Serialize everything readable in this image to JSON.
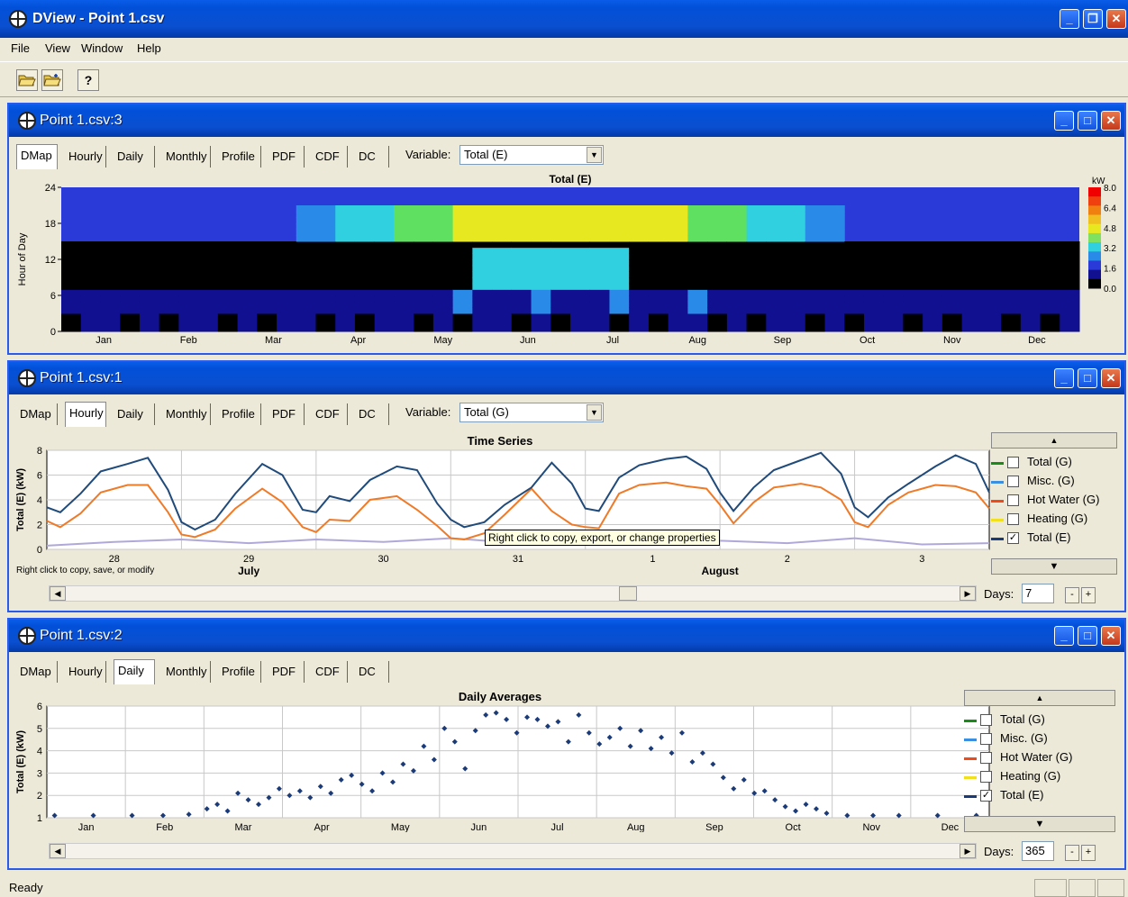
{
  "app": {
    "title": "DView - Point 1.csv"
  },
  "menu": [
    "File",
    "View",
    "Window",
    "Help"
  ],
  "toolbar": {
    "icons": [
      "open-folder-icon",
      "open-folder-add-icon",
      "help-icon"
    ],
    "help_glyph": "?"
  },
  "tabs": [
    "DMap",
    "Hourly",
    "Daily",
    "Monthly",
    "Profile",
    "PDF",
    "CDF",
    "DC"
  ],
  "windows": {
    "w3": {
      "title": "Point 1.csv:3",
      "active_tab": "DMap",
      "variable_label": "Variable:",
      "variable_value": "Total (E)"
    },
    "w1": {
      "title": "Point 1.csv:1",
      "active_tab": "Hourly",
      "variable_label": "Variable:",
      "variable_value": "Total (G)",
      "footnote": "Right click to copy, save, or modify",
      "tooltip": "Right click to copy, export, or change properties",
      "days_label": "Days:",
      "days_value": "7"
    },
    "w2": {
      "title": "Point 1.csv:2",
      "active_tab": "Daily",
      "days_label": "Days:",
      "days_value": "365"
    }
  },
  "legend": [
    {
      "label": "Total (G)",
      "color": "#1a8a1a",
      "checked": false
    },
    {
      "label": "Misc. (G)",
      "color": "#3a8fe0",
      "checked": false
    },
    {
      "label": "Hot Water (G)",
      "color": "#f04a1a",
      "checked": false
    },
    {
      "label": "Heating (G)",
      "color": "#f0e020",
      "checked": false
    },
    {
      "label": "Total (E)",
      "color": "#1a3a78",
      "checked": true
    }
  ],
  "check_glyph": "✓",
  "status": {
    "text": "Ready"
  },
  "chart_data": [
    {
      "type": "heatmap",
      "title": "Total (E)",
      "ylabel": "Hour of Day",
      "yticks": [
        "0",
        "6",
        "12",
        "18",
        "24"
      ],
      "xticks": [
        "Jan",
        "Feb",
        "Mar",
        "Apr",
        "May",
        "Jun",
        "Jul",
        "Aug",
        "Sep",
        "Oct",
        "Nov",
        "Dec"
      ],
      "colorbar": {
        "unit": "kW",
        "ticks": [
          "8.0",
          "6.4",
          "4.8",
          "3.2",
          "1.6",
          "0.0"
        ],
        "range": [
          0,
          8
        ]
      }
    },
    {
      "type": "line",
      "title": "Time Series",
      "ylabel": "Total (E) (kW)",
      "ylim": [
        0,
        8
      ],
      "yticks": [
        "0",
        "2",
        "4",
        "6",
        "8"
      ],
      "day_ticks": [
        "28",
        "29",
        "30",
        "31",
        "1",
        "2",
        "3"
      ],
      "month_labels": [
        "July",
        "August"
      ],
      "series": [
        {
          "name": "Total (E)",
          "color": "#1f4a7a",
          "x": [
            0,
            0.1,
            0.25,
            0.4,
            0.6,
            0.75,
            0.9,
            1.0,
            1.1,
            1.25,
            1.4,
            1.6,
            1.75,
            1.9,
            2.0,
            2.1,
            2.25,
            2.4,
            2.6,
            2.75,
            2.9,
            3.0,
            3.1,
            3.25,
            3.4,
            3.6,
            3.75,
            3.9,
            4.0,
            4.1,
            4.25,
            4.4,
            4.6,
            4.75,
            4.9,
            5.0,
            5.1,
            5.25,
            5.4,
            5.6,
            5.75,
            5.9,
            6.0,
            6.1,
            6.25,
            6.4,
            6.6,
            6.75,
            6.9,
            7.0
          ],
          "values": [
            3.4,
            3.0,
            4.5,
            6.3,
            6.9,
            7.4,
            4.8,
            2.2,
            1.6,
            2.4,
            4.5,
            6.9,
            6.0,
            3.2,
            3.0,
            4.3,
            3.9,
            5.6,
            6.7,
            6.4,
            3.7,
            2.4,
            1.8,
            2.2,
            3.6,
            5.0,
            7.0,
            5.3,
            3.3,
            3.1,
            5.8,
            6.8,
            7.3,
            7.5,
            6.5,
            4.6,
            3.1,
            5.0,
            6.4,
            7.2,
            7.8,
            6.1,
            3.4,
            2.6,
            4.2,
            5.3,
            6.7,
            7.6,
            6.9,
            4.6
          ]
        },
        {
          "name": "Hot Water (G)",
          "color": "#ef7a28",
          "x": [
            0,
            0.1,
            0.25,
            0.4,
            0.6,
            0.75,
            0.9,
            1.0,
            1.1,
            1.25,
            1.4,
            1.6,
            1.75,
            1.9,
            2.0,
            2.1,
            2.25,
            2.4,
            2.6,
            2.75,
            2.9,
            3.0,
            3.1,
            3.25,
            3.4,
            3.6,
            3.75,
            3.9,
            4.0,
            4.1,
            4.25,
            4.4,
            4.6,
            4.75,
            4.9,
            5.0,
            5.1,
            5.25,
            5.4,
            5.6,
            5.75,
            5.9,
            6.0,
            6.1,
            6.25,
            6.4,
            6.6,
            6.75,
            6.9,
            7.0
          ],
          "values": [
            2.3,
            1.8,
            2.9,
            4.6,
            5.2,
            5.2,
            3.0,
            1.2,
            1.0,
            1.6,
            3.3,
            4.9,
            3.8,
            1.8,
            1.4,
            2.4,
            2.3,
            4.0,
            4.3,
            3.2,
            1.9,
            0.9,
            0.8,
            1.3,
            2.8,
            4.9,
            3.1,
            2.0,
            1.8,
            1.7,
            4.5,
            5.2,
            5.4,
            5.1,
            4.9,
            3.6,
            2.1,
            3.8,
            5.0,
            5.3,
            5.0,
            4.0,
            2.2,
            1.8,
            3.6,
            4.6,
            5.2,
            5.1,
            4.6,
            3.3
          ]
        },
        {
          "name": "Misc. (G)",
          "color": "#b0a8d8",
          "x": [
            0,
            0.5,
            1.0,
            1.5,
            2.0,
            2.5,
            3.0,
            3.5,
            4.0,
            4.5,
            5.0,
            5.5,
            6.0,
            6.5,
            7.0
          ],
          "values": [
            0.3,
            0.6,
            0.8,
            0.5,
            0.8,
            0.6,
            0.9,
            0.5,
            0.8,
            0.5,
            0.7,
            0.5,
            0.9,
            0.4,
            0.5
          ]
        }
      ]
    },
    {
      "type": "scatter",
      "title": "Daily Averages",
      "ylabel": "Total (E) (kW)",
      "ylim": [
        1,
        6
      ],
      "yticks": [
        "1",
        "2",
        "3",
        "4",
        "5",
        "6"
      ],
      "xticks": [
        "Jan",
        "Feb",
        "Mar",
        "Apr",
        "May",
        "Jun",
        "Jul",
        "Aug",
        "Sep",
        "Oct",
        "Nov",
        "Dec"
      ],
      "series": [
        {
          "name": "Total (E)",
          "color": "#1a3a78",
          "x": [
            3,
            18,
            33,
            45,
            55,
            62,
            66,
            70,
            74,
            78,
            82,
            86,
            90,
            94,
            98,
            102,
            106,
            110,
            114,
            118,
            122,
            126,
            130,
            134,
            138,
            142,
            146,
            150,
            154,
            158,
            162,
            166,
            170,
            174,
            178,
            182,
            186,
            190,
            194,
            198,
            202,
            206,
            210,
            214,
            218,
            222,
            226,
            230,
            234,
            238,
            242,
            246,
            250,
            254,
            258,
            262,
            266,
            270,
            274,
            278,
            282,
            286,
            290,
            294,
            298,
            302,
            310,
            320,
            330,
            345,
            360
          ],
          "values": [
            1.1,
            1.1,
            1.1,
            1.1,
            1.15,
            1.4,
            1.6,
            1.3,
            2.1,
            1.8,
            1.6,
            1.9,
            2.3,
            2.0,
            2.2,
            1.9,
            2.4,
            2.1,
            2.7,
            2.9,
            2.5,
            2.2,
            3.0,
            2.6,
            3.4,
            3.1,
            4.2,
            3.6,
            5.0,
            4.4,
            3.2,
            4.9,
            5.6,
            5.7,
            5.4,
            4.8,
            5.5,
            5.4,
            5.1,
            5.3,
            4.4,
            5.6,
            4.8,
            4.3,
            4.6,
            5.0,
            4.2,
            4.9,
            4.1,
            4.6,
            3.9,
            4.8,
            3.5,
            3.9,
            3.4,
            2.8,
            2.3,
            2.7,
            2.1,
            2.2,
            1.8,
            1.5,
            1.3,
            1.6,
            1.4,
            1.2,
            1.1,
            1.1,
            1.1,
            1.1,
            1.1
          ]
        }
      ]
    }
  ]
}
